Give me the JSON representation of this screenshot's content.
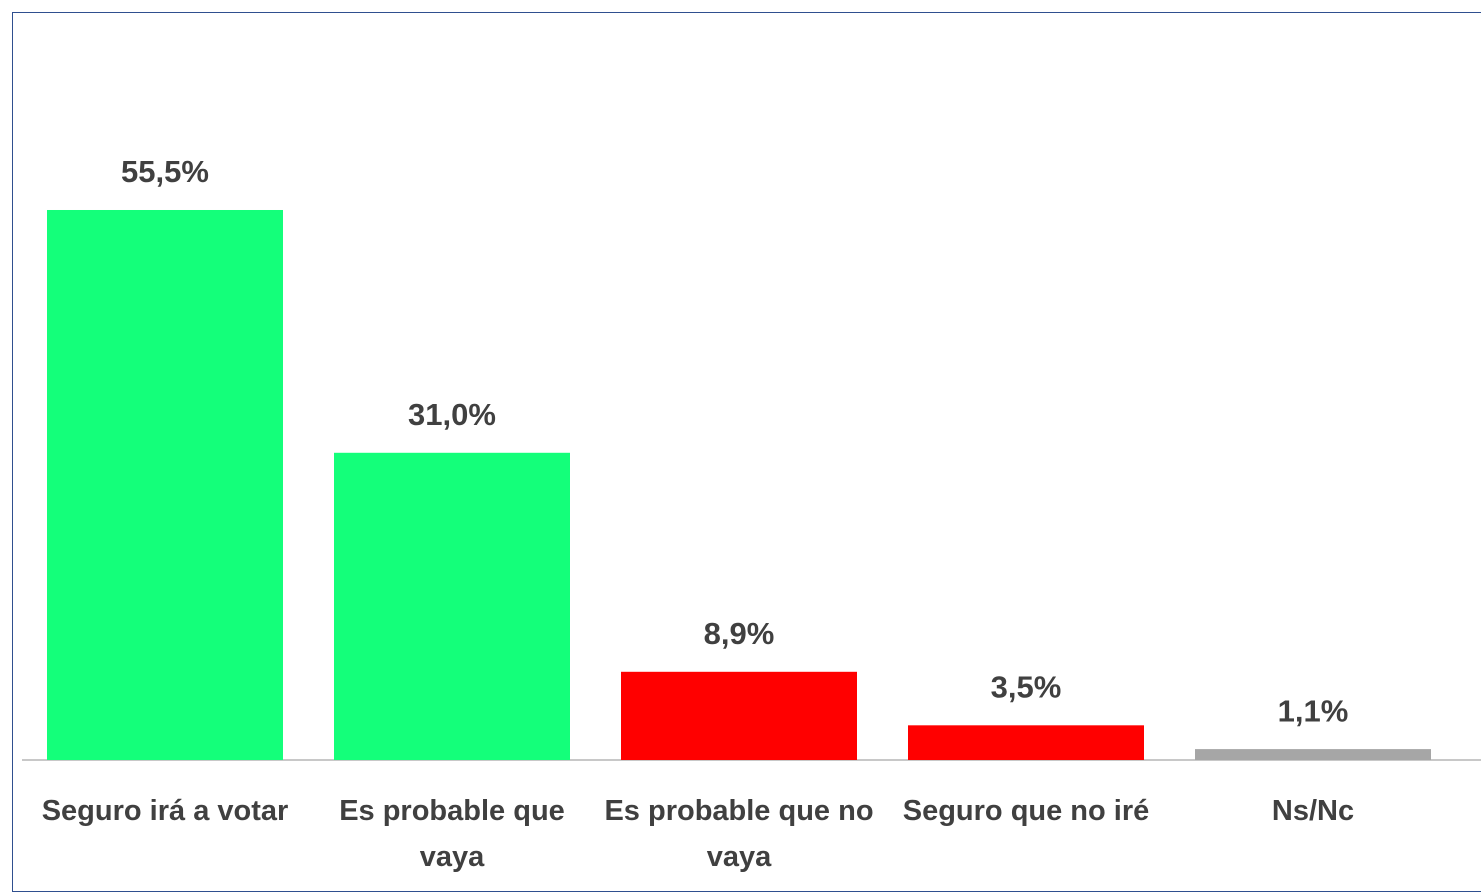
{
  "chart_data": {
    "type": "bar",
    "categories": [
      "Seguro irá a votar",
      "Es probable que vaya",
      "Es probable que no vaya",
      "Seguro que no iré",
      "Ns/Nc"
    ],
    "values": [
      55.5,
      31.0,
      8.9,
      3.5,
      1.1
    ],
    "value_labels": [
      "55,5%",
      "31,0%",
      "8,9%",
      "3,5%",
      "1,1%"
    ],
    "colors": [
      "#14ff7a",
      "#14ff7a",
      "#ff0000",
      "#ff0000",
      "#a6a6a6"
    ]
  }
}
